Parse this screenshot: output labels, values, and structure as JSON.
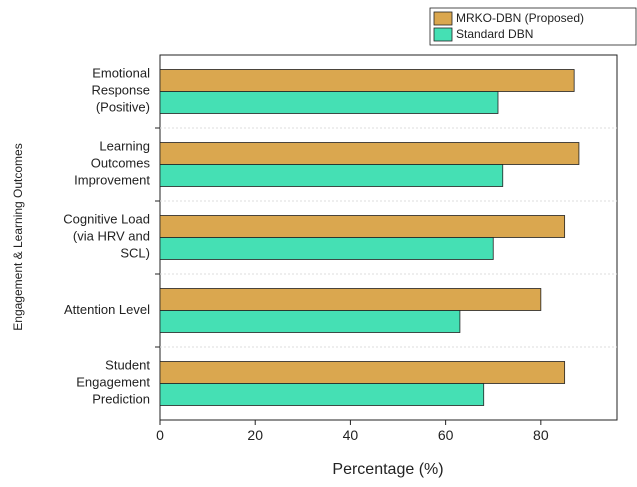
{
  "chart_data": {
    "type": "barh",
    "xlabel": "Percentage (%)",
    "ylabel": "Engagement & Learning Outcomes",
    "categories": [
      "Emotional\nResponse\n(Positive)",
      "Learning\nOutcomes\nImprovement",
      "Cognitive Load\n(via HRV and\nSCL)",
      "Attention Level",
      "Student\nEngagement\nPrediction"
    ],
    "series": [
      {
        "name": "MRKO-DBN (Proposed)",
        "color": "#daa74f",
        "values": [
          87,
          88,
          85,
          80,
          85
        ]
      },
      {
        "name": "Standard DBN",
        "color": "#45e0b4",
        "values": [
          71,
          72,
          70,
          63,
          68
        ]
      }
    ],
    "xlim": [
      0,
      96
    ],
    "xticks": [
      0,
      20,
      40,
      60,
      80
    ],
    "legend": "top-right"
  }
}
